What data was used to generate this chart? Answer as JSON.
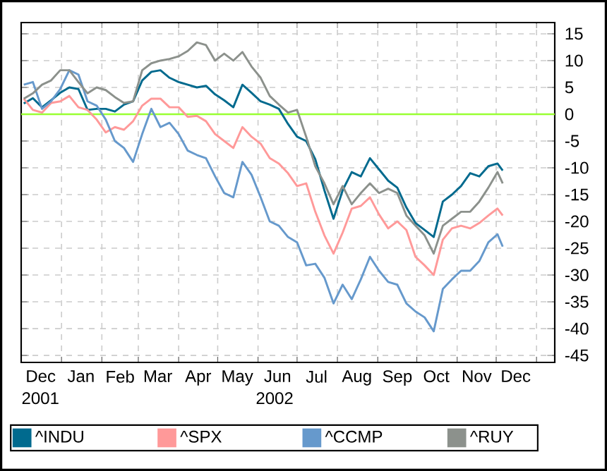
{
  "chart_data": {
    "type": "line",
    "x": [
      "2001-12-03",
      "2001-12-10",
      "2001-12-17",
      "2001-12-24",
      "2001-12-31",
      "2002-01-07",
      "2002-01-14",
      "2002-01-21",
      "2002-01-28",
      "2002-02-04",
      "2002-02-11",
      "2002-02-18",
      "2002-02-25",
      "2002-03-04",
      "2002-03-11",
      "2002-03-18",
      "2002-03-25",
      "2002-04-01",
      "2002-04-08",
      "2002-04-15",
      "2002-04-22",
      "2002-04-29",
      "2002-05-06",
      "2002-05-13",
      "2002-05-20",
      "2002-05-27",
      "2002-06-03",
      "2002-06-10",
      "2002-06-17",
      "2002-06-24",
      "2002-07-01",
      "2002-07-08",
      "2002-07-15",
      "2002-07-22",
      "2002-07-29",
      "2002-08-05",
      "2002-08-12",
      "2002-08-19",
      "2002-08-26",
      "2002-09-02",
      "2002-09-09",
      "2002-09-16",
      "2002-09-23",
      "2002-09-30",
      "2002-10-07",
      "2002-10-14",
      "2002-10-21",
      "2002-10-28",
      "2002-11-04",
      "2002-11-11",
      "2002-11-18",
      "2002-11-25",
      "2002-12-02",
      "2002-12-06"
    ],
    "series": [
      {
        "name": "^INDU",
        "color": "#006a8e",
        "values": [
          2,
          3,
          1.3,
          2.6,
          4,
          5,
          4.7,
          0.8,
          1,
          1,
          0.5,
          1.8,
          2.4,
          6.3,
          7.9,
          8.2,
          6.8,
          6,
          5.5,
          5,
          5.3,
          3.7,
          2.6,
          1.3,
          5.5,
          4,
          2.4,
          1.8,
          1,
          -1.8,
          -4.2,
          -5,
          -8.4,
          -14.2,
          -19.5,
          -14.2,
          -10.8,
          -11.6,
          -8.2,
          -10.3,
          -12.4,
          -13.7,
          -17.4,
          -20.3,
          -21.6,
          -22.9,
          -16.3,
          -15,
          -13.4,
          -11,
          -11.6,
          -9.7,
          -9.2,
          -10.5
        ]
      },
      {
        "name": "^SPX",
        "color": "#ff9999",
        "values": [
          2.9,
          0.8,
          0.3,
          2.1,
          2.4,
          3.4,
          1.3,
          0.8,
          -1,
          -3.4,
          -2.4,
          -2.9,
          -1.3,
          1.6,
          2.9,
          2.9,
          1.3,
          1.3,
          -0.5,
          -0.3,
          -1.3,
          -3.7,
          -5,
          -6.3,
          -2.4,
          -4.2,
          -5.5,
          -8.2,
          -9.2,
          -11,
          -13.4,
          -12.9,
          -18.2,
          -22.6,
          -26,
          -22.1,
          -17.6,
          -17.1,
          -15.5,
          -18.7,
          -21.3,
          -20,
          -21.6,
          -26.6,
          -28.2,
          -30,
          -23.4,
          -21.3,
          -20.8,
          -21.3,
          -20.3,
          -18.9,
          -17.6,
          -18.9
        ]
      },
      {
        "name": "^CCMP",
        "color": "#6699cc",
        "values": [
          5.5,
          6,
          1,
          2.4,
          4.7,
          8.2,
          7.4,
          2.4,
          1.6,
          -1,
          -5,
          -6.3,
          -8.9,
          -3.7,
          1,
          -2.4,
          -1.6,
          -3.7,
          -6.8,
          -7.6,
          -8.2,
          -11.6,
          -14.7,
          -15.5,
          -8.9,
          -11.3,
          -15.5,
          -20,
          -20.8,
          -22.9,
          -23.9,
          -28.2,
          -27.9,
          -30.5,
          -35.3,
          -31.8,
          -34.5,
          -30.8,
          -26.6,
          -29.2,
          -31.3,
          -31.8,
          -35.3,
          -36.8,
          -37.9,
          -40.5,
          -32.6,
          -30.8,
          -29.2,
          -29.2,
          -27.4,
          -23.9,
          -22.4,
          -24.7
        ]
      },
      {
        "name": "^RUY",
        "color": "#8c918c",
        "values": [
          2.9,
          3.9,
          5.5,
          6.3,
          8.2,
          8.2,
          6,
          3.9,
          5,
          4.5,
          3.2,
          2.1,
          2.4,
          8.2,
          9.5,
          10,
          10.3,
          10.8,
          11.8,
          13.4,
          12.9,
          10,
          11.3,
          10,
          11.6,
          8.9,
          6.8,
          3.4,
          1.8,
          0.3,
          0.8,
          -4.2,
          -9.7,
          -12.9,
          -16.8,
          -13.4,
          -16.8,
          -14.7,
          -12.9,
          -14.7,
          -13.9,
          -14.7,
          -18.9,
          -20.8,
          -22.6,
          -26,
          -20.8,
          -19.5,
          -18.2,
          -18.2,
          -16.3,
          -13.7,
          -10.8,
          -12.9
        ]
      }
    ],
    "xlim": [
      "2001-12-01",
      "2003-01-15"
    ],
    "xticks": [
      {
        "value": "2001-12-01",
        "label": null
      },
      {
        "value": "2002-01-01",
        "label": null
      },
      {
        "value": "2002-02-01",
        "label": null
      },
      {
        "value": "2002-03-01",
        "label": null
      },
      {
        "value": "2002-04-01",
        "label": null
      },
      {
        "value": "2002-05-01",
        "label": null
      },
      {
        "value": "2002-06-01",
        "label": null
      },
      {
        "value": "2002-07-01",
        "label": null
      },
      {
        "value": "2002-08-01",
        "label": null
      },
      {
        "value": "2002-09-01",
        "label": null
      },
      {
        "value": "2002-10-01",
        "label": null
      },
      {
        "value": "2002-11-01",
        "label": null
      },
      {
        "value": "2002-12-01",
        "label": null
      },
      {
        "value": "2003-01-01",
        "label": null
      },
      {
        "value": "2001-12-16",
        "label": "Dec"
      },
      {
        "value": "2002-01-16",
        "label": "Jan"
      },
      {
        "value": "2002-02-15",
        "label": "Feb"
      },
      {
        "value": "2002-03-16",
        "label": "Mar"
      },
      {
        "value": "2002-04-16",
        "label": "Apr"
      },
      {
        "value": "2002-05-16",
        "label": "May"
      },
      {
        "value": "2002-06-16",
        "label": "Jun"
      },
      {
        "value": "2002-07-16",
        "label": "Jul"
      },
      {
        "value": "2002-08-16",
        "label": "Aug"
      },
      {
        "value": "2002-09-16",
        "label": "Sep"
      },
      {
        "value": "2002-10-16",
        "label": "Oct"
      },
      {
        "value": "2002-11-16",
        "label": "Nov"
      },
      {
        "value": "2002-12-16",
        "label": "Dec"
      }
    ],
    "ylim": [
      -46.3,
      17.1
    ],
    "yticks": [
      15,
      10,
      5,
      0,
      -5,
      -10,
      -15,
      -20,
      -25,
      -30,
      -35,
      -40,
      -45
    ],
    "ref_lines": [
      {
        "axis": "y",
        "value": 0,
        "color": "#99ff33"
      }
    ],
    "annotations": [
      "2001",
      "2002"
    ],
    "grid": true,
    "legend": "bottom",
    "line_style": "solid",
    "marker": "none"
  }
}
